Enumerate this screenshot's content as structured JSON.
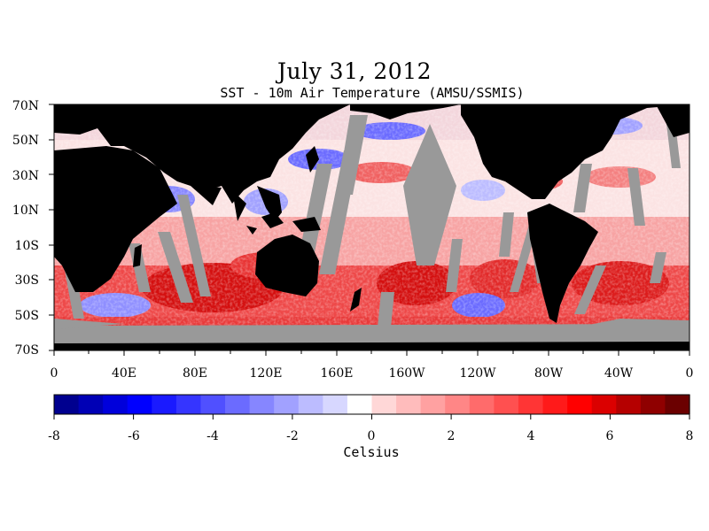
{
  "header": {
    "title": "July 31, 2012",
    "subtitle": "SST - 10m Air Temperature (AMSU/SSMIS)"
  },
  "map": {
    "lat_labels": [
      "70N",
      "50N",
      "30N",
      "10N",
      "10S",
      "30S",
      "50S",
      "70S"
    ],
    "lon_labels": [
      "0",
      "40E",
      "80E",
      "120E",
      "160E",
      "160W",
      "120W",
      "80W",
      "40W",
      "0"
    ],
    "colors": {
      "land": "#000000",
      "missing": "#999999",
      "background": "#ffffff"
    }
  },
  "colorbar": {
    "tick_labels": [
      "-8",
      "-6",
      "-4",
      "-2",
      "0",
      "2",
      "4",
      "6",
      "8"
    ],
    "units_label": "Celsius",
    "colors": [
      "#00008f",
      "#0000b5",
      "#0000db",
      "#0000ff",
      "#1a1aff",
      "#3535ff",
      "#5050ff",
      "#6b6bff",
      "#8686ff",
      "#a1a1ff",
      "#bcbcff",
      "#d7d7ff",
      "#ffffff",
      "#ffd7d7",
      "#ffbcbc",
      "#ffa1a1",
      "#ff8686",
      "#ff6b6b",
      "#ff5050",
      "#ff3535",
      "#ff1a1a",
      "#ff0000",
      "#db0000",
      "#b50000",
      "#8f0000",
      "#6b0000"
    ]
  }
}
